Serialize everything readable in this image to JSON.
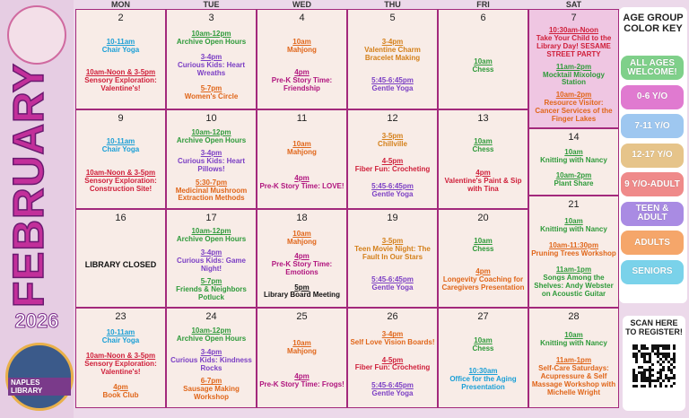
{
  "header": {
    "month": "FEBRUARY",
    "year": "2026",
    "library": "NAPLES LIBRARY"
  },
  "weekdays": [
    "MON",
    "TUE",
    "WED",
    "THU",
    "FRI",
    "SAT"
  ],
  "weeks": [
    {
      "days": [
        {
          "date": 2,
          "events": [
            {
              "time": "10-11am",
              "text": "Chair Yoga",
              "color": "#1a9fd6"
            },
            {
              "time": "10am-Noon & 3-5pm",
              "text": "Sensory Exploration: Valentine's!",
              "color": "#cf1f3a"
            }
          ]
        },
        {
          "date": 3,
          "events": [
            {
              "time": "10am-12pm",
              "text": "Archive Open Hours",
              "color": "#2e9a3a"
            },
            {
              "time": "3-4pm",
              "text": "Curious Kids: Heart Wreaths",
              "color": "#7b3fc4"
            },
            {
              "time": "5-7pm",
              "text": "Women's Circle",
              "color": "#e0661a"
            }
          ]
        },
        {
          "date": 4,
          "events": [
            {
              "time": "10am",
              "text": "Mahjong",
              "color": "#e0661a"
            },
            {
              "time": "4pm",
              "text": "Pre-K Story Time: Friendship",
              "color": "#b0147e"
            }
          ]
        },
        {
          "date": 5,
          "events": [
            {
              "time": "3-4pm",
              "text": "Valentine Charm Bracelet Making",
              "color": "#d4801a"
            },
            {
              "time": "5:45-6:45pm",
              "text": "Gentle Yoga",
              "color": "#7b3fc4"
            }
          ]
        },
        {
          "date": 6,
          "events": [
            {
              "time": "10am",
              "text": "Chess",
              "color": "#2e9a3a"
            }
          ]
        },
        {
          "date": 7,
          "events": [
            {
              "time": "10:30am-Noon",
              "text": "Take Your Child to the Library Day! SESAME STREET PARTY",
              "color": "#cf1f3a"
            },
            {
              "time": "11am-2pm",
              "text": "Mocktail Mixology Station",
              "color": "#2e9a3a"
            },
            {
              "time": "10am-2pm",
              "text": "Resource Visitor: Cancer Services of the Finger Lakes",
              "color": "#e0661a"
            }
          ]
        }
      ]
    },
    {
      "days": [
        {
          "date": 9,
          "events": [
            {
              "time": "10-11am",
              "text": "Chair Yoga",
              "color": "#1a9fd6"
            },
            {
              "time": "10am-Noon & 3-5pm",
              "text": "Sensory Exploration: Construction Site!",
              "color": "#cf1f3a"
            }
          ]
        },
        {
          "date": 10,
          "events": [
            {
              "time": "10am-12pm",
              "text": "Archive Open Hours",
              "color": "#2e9a3a"
            },
            {
              "time": "3-4pm",
              "text": "Curious Kids: Heart Pillows!",
              "color": "#7b3fc4"
            },
            {
              "time": "5:30-7pm",
              "text": "Medicinal Mushroom Extraction Methods",
              "color": "#e0661a"
            }
          ]
        },
        {
          "date": 11,
          "events": [
            {
              "time": "10am",
              "text": "Mahjong",
              "color": "#e0661a"
            },
            {
              "time": "4pm",
              "text": "Pre-K Story Time: LOVE!",
              "color": "#b0147e"
            }
          ]
        },
        {
          "date": 12,
          "events": [
            {
              "time": "3-5pm",
              "text": "Chillville",
              "color": "#d4801a"
            },
            {
              "time": "4-5pm",
              "text": "Fiber Fun: Crocheting",
              "color": "#cf1f3a"
            },
            {
              "time": "5:45-6:45pm",
              "text": "Gentle Yoga",
              "color": "#7b3fc4"
            }
          ]
        },
        {
          "date": 13,
          "events": [
            {
              "time": "10am",
              "text": "Chess",
              "color": "#2e9a3a"
            },
            {
              "time": "4pm",
              "text": "Valentine's Paint & Sip with Tina",
              "color": "#cf1f3a"
            }
          ]
        },
        {
          "date": 14,
          "events": [
            {
              "time": "10am",
              "text": "Knitting with Nancy",
              "color": "#2e9a3a"
            },
            {
              "time": "10am-2pm",
              "text": "Plant Share",
              "color": "#2e9a3a"
            }
          ]
        }
      ]
    },
    {
      "days": [
        {
          "date": 16,
          "events": [
            {
              "text": "LIBRARY CLOSED",
              "color": "#111111"
            }
          ]
        },
        {
          "date": 17,
          "events": [
            {
              "time": "10am-12pm",
              "text": "Archive Open Hours",
              "color": "#2e9a3a"
            },
            {
              "time": "3-4pm",
              "text": "Curious Kids: Game Night!",
              "color": "#7b3fc4"
            },
            {
              "time": "5-7pm",
              "text": "Friends & Neighbors Potluck",
              "color": "#2e9a3a"
            }
          ]
        },
        {
          "date": 18,
          "events": [
            {
              "time": "10am",
              "text": "Mahjong",
              "color": "#e0661a"
            },
            {
              "time": "4pm",
              "text": "Pre-K Story Time: Emotions",
              "color": "#b0147e"
            },
            {
              "time": "5pm",
              "text": "Library Board Meeting",
              "color": "#111111"
            }
          ]
        },
        {
          "date": 19,
          "events": [
            {
              "time": "3-5pm",
              "text": "Teen Movie Night: The Fault In Our Stars",
              "color": "#d4801a"
            },
            {
              "time": "5:45-6:45pm",
              "text": "Gentle Yoga",
              "color": "#7b3fc4"
            }
          ]
        },
        {
          "date": 20,
          "events": [
            {
              "time": "10am",
              "text": "Chess",
              "color": "#2e9a3a"
            },
            {
              "time": "4pm",
              "text": "Longevity Coaching for Caregivers Presentation",
              "color": "#e0661a"
            }
          ]
        },
        {
          "date": 21,
          "events": [
            {
              "time": "10am",
              "text": "Knitting with Nancy",
              "color": "#2e9a3a"
            },
            {
              "time": "10am-11:30pm",
              "text": "Pruning Trees Workshop",
              "color": "#e0661a"
            },
            {
              "time": "11am-1pm",
              "text": "Songs Among the Shelves: Andy Webster on Acoustic Guitar",
              "color": "#2e9a3a"
            }
          ]
        }
      ]
    },
    {
      "days": [
        {
          "date": 23,
          "events": [
            {
              "time": "10-11am",
              "text": "Chair Yoga",
              "color": "#1a9fd6"
            },
            {
              "time": "10am-Noon & 3-5pm",
              "text": "Sensory Exploration: Valentine's!",
              "color": "#cf1f3a"
            },
            {
              "time": "4pm",
              "text": "Book Club",
              "color": "#e0661a"
            }
          ]
        },
        {
          "date": 24,
          "events": [
            {
              "time": "10am-12pm",
              "text": "Archive Open Hours",
              "color": "#2e9a3a"
            },
            {
              "time": "3-4pm",
              "text": "Curious Kids: Kindness Rocks",
              "color": "#7b3fc4"
            },
            {
              "time": "6-7pm",
              "text": "Sausage Making Workshop",
              "color": "#e0661a"
            }
          ]
        },
        {
          "date": 25,
          "events": [
            {
              "time": "10am",
              "text": "Mahjong",
              "color": "#e0661a"
            },
            {
              "time": "4pm",
              "text": "Pre-K Story Time: Frogs!",
              "color": "#b0147e"
            }
          ]
        },
        {
          "date": 26,
          "events": [
            {
              "time": "3-4pm",
              "text": "Self Love Vision Boards!",
              "color": "#e0661a"
            },
            {
              "time": "4-5pm",
              "text": "Fiber Fun: Crocheting",
              "color": "#cf1f3a"
            },
            {
              "time": "5:45-6:45pm",
              "text": "Gentle Yoga",
              "color": "#7b3fc4"
            }
          ]
        },
        {
          "date": 27,
          "events": [
            {
              "time": "10am",
              "text": "Chess",
              "color": "#2e9a3a"
            },
            {
              "time": "10:30am",
              "text": "Office for the Aging Presentation",
              "color": "#1a9fd6"
            }
          ]
        },
        {
          "date": 28,
          "events": [
            {
              "time": "10am",
              "text": "Knitting with Nancy",
              "color": "#2e9a3a"
            },
            {
              "time": "11am-1pm",
              "text": "Self-Care Saturdays: Acupressure & Self Massage Workshop with Michelle Wright",
              "color": "#e0661a"
            }
          ]
        }
      ]
    }
  ],
  "key": {
    "title": "AGE GROUP COLOR KEY",
    "items": [
      {
        "label": "ALL AGES WELCOME!",
        "color": "#7fd08a"
      },
      {
        "label": "0-6 Y/O",
        "color": "#e07ad0"
      },
      {
        "label": "7-11 Y/O",
        "color": "#9ec7f0"
      },
      {
        "label": "12-17 Y/O",
        "color": "#e6c48a"
      },
      {
        "label": "9 Y/O-ADULT",
        "color": "#ef8a8a"
      },
      {
        "label": "TEEN & ADULT",
        "color": "#a98be3"
      },
      {
        "label": "ADULTS",
        "color": "#f5a66a"
      },
      {
        "label": "SENIORS",
        "color": "#7ad2ea"
      }
    ]
  },
  "register": "SCAN HERE TO REGISTER!"
}
